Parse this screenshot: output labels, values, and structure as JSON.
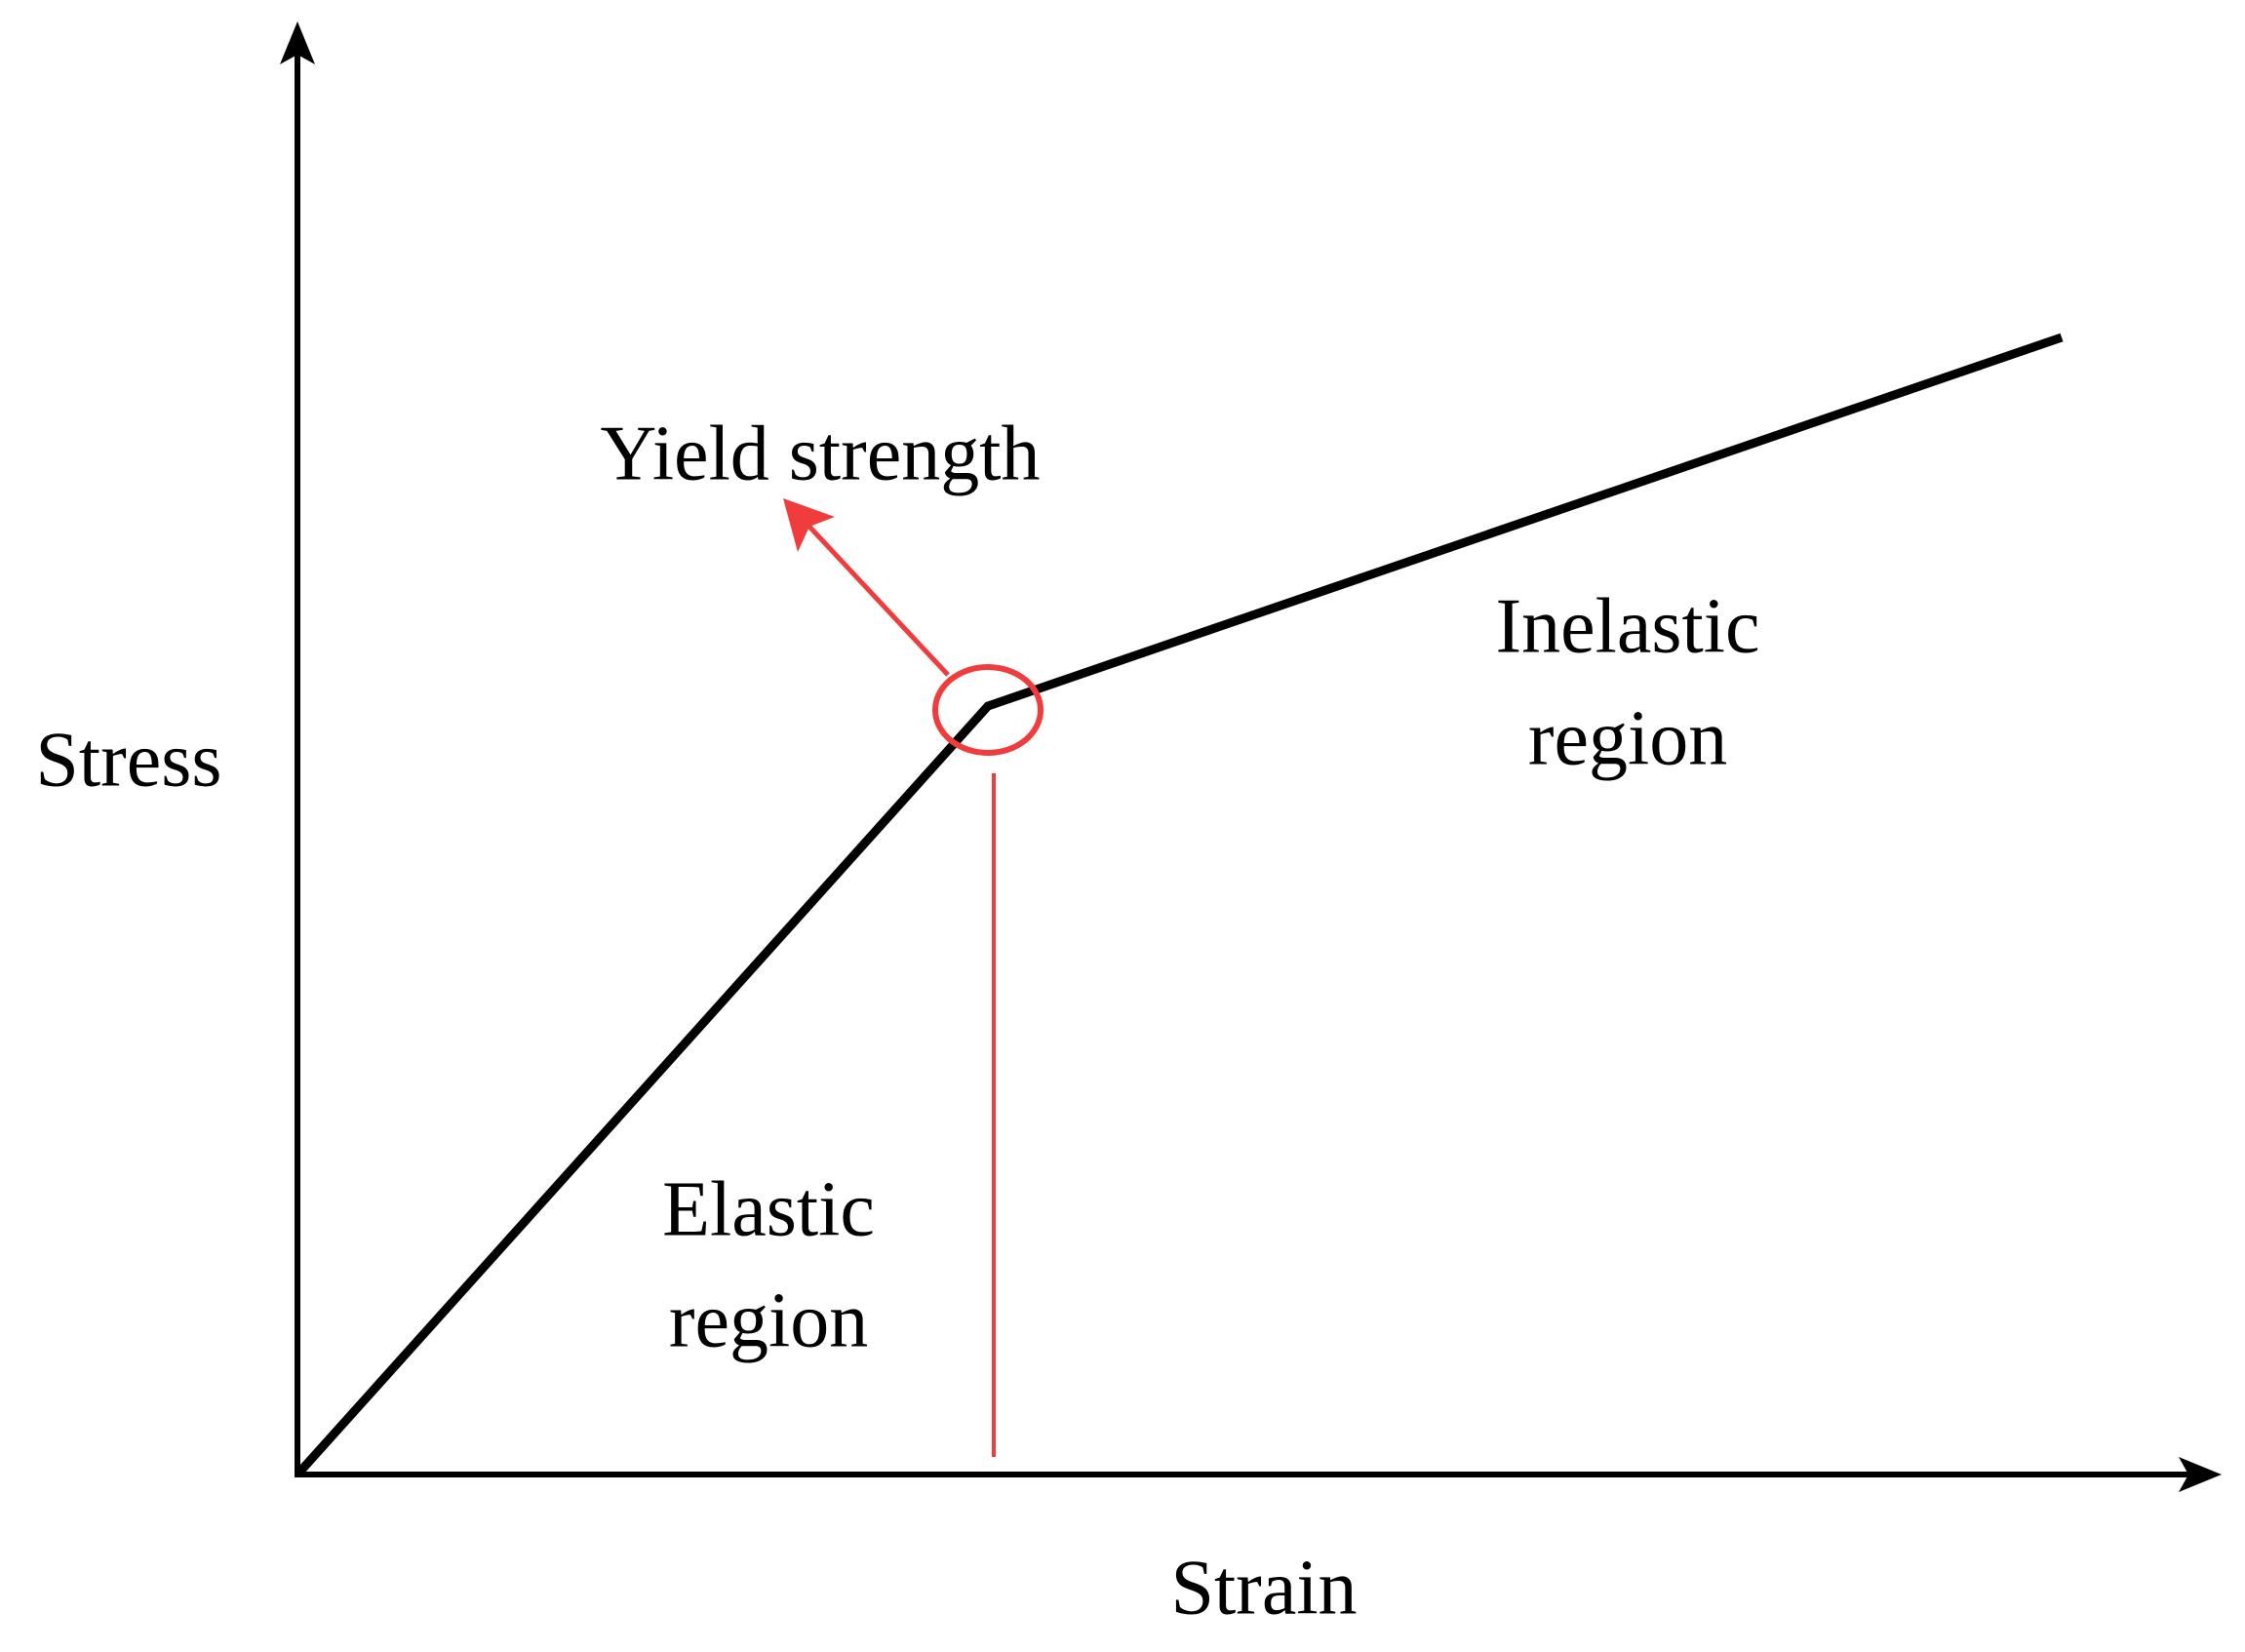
{
  "axes": {
    "y_label": "Stress",
    "x_label": "Strain"
  },
  "annotations": {
    "yield": "Yield strength",
    "elastic": {
      "lines": [
        "Elastic",
        "region"
      ]
    },
    "inelastic": {
      "lines": [
        "Inelastic",
        "region"
      ]
    }
  }
}
